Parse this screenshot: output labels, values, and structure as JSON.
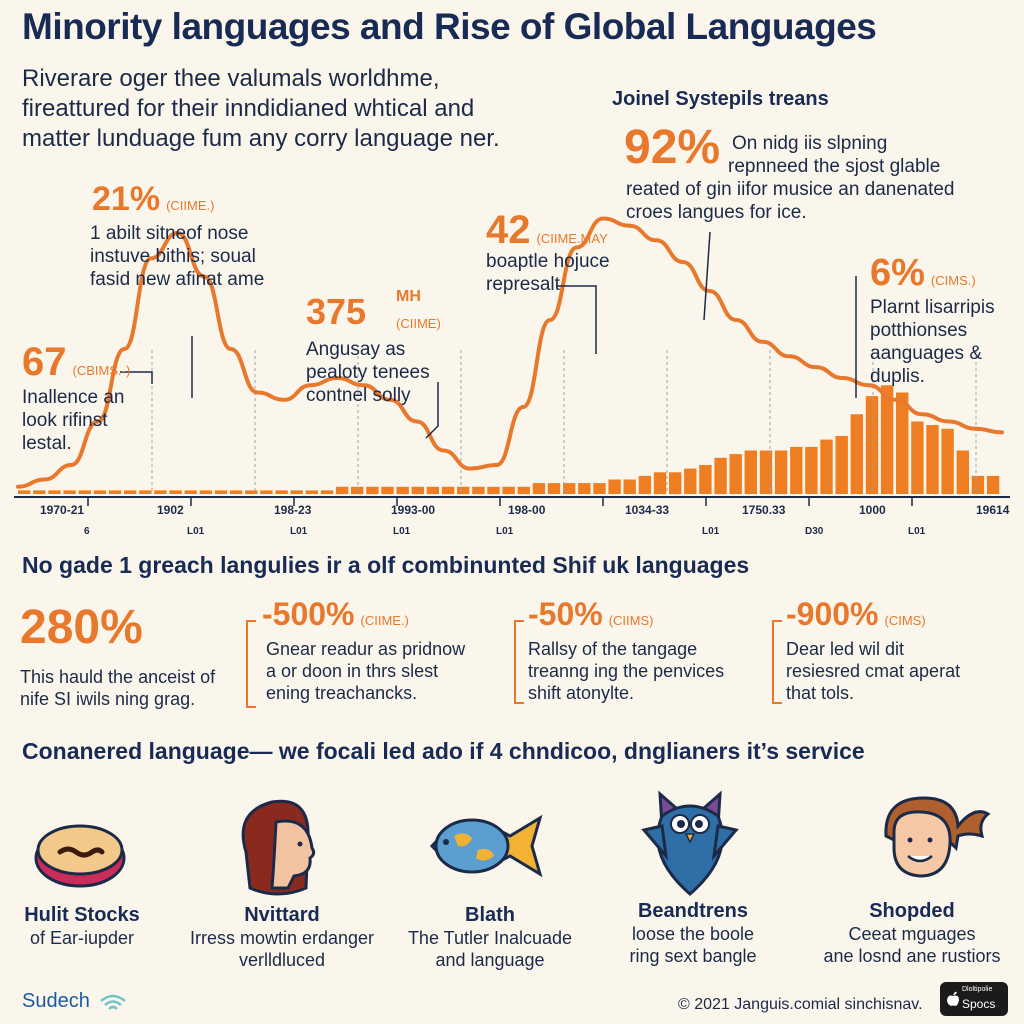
{
  "header": {
    "title": "Minority languages and Rise of Global Languages",
    "intro": [
      "Riverare oger thee valumals worldhme,",
      "fireattured for their inndidianed whtical and",
      "matter lunduage fum any corry language ner."
    ],
    "side_heading": "Joinel Systepils treans"
  },
  "callouts": [
    {
      "value": "67",
      "unit": "(CBIMS.-)",
      "lines": [
        "Inallence an",
        "look rifinst",
        "lestal."
      ]
    },
    {
      "value": "21%",
      "unit": "(CIIME.)",
      "lines": [
        "1 abilt sitneof nose",
        "instuve bithis; soual",
        "fasid new afinat ame"
      ]
    },
    {
      "value": "375",
      "unit": "MH",
      "unit2": "(CIIME)",
      "lines": [
        "Angusay as",
        "pealoty tenees",
        "contnel solly"
      ]
    },
    {
      "value": "42",
      "unit": "(CIIME.MAY",
      "lines": [
        "boaptle hojuce",
        "represalt"
      ]
    },
    {
      "value": "92%",
      "unit": "",
      "lines": [
        "On nidg iis slpning",
        "repnneed the sjost glable",
        "reated of gin iifor musice an danenated",
        "croes langues for ice."
      ]
    },
    {
      "value": "6%",
      "unit": "(CIMS.)",
      "lines": [
        "Plarnt lisarripis",
        "potthionses",
        "aanguages &",
        "duplis."
      ]
    }
  ],
  "chart_data": {
    "type": "area",
    "x": [
      "1970-21",
      "1902",
      "198-23",
      "1993-00",
      "198-00",
      "1034-33",
      "1750.33",
      "1000",
      "19614"
    ],
    "x_sub": [
      "6",
      "L01",
      "L01",
      "L01",
      "L01",
      "",
      "L01",
      "D30",
      "L01"
    ],
    "line_values": [
      2,
      4,
      8,
      20,
      40,
      65,
      72,
      60,
      40,
      28,
      26,
      30,
      32,
      30,
      26,
      20,
      12,
      7,
      8,
      24,
      48,
      68,
      76,
      74,
      70,
      64,
      56,
      48,
      42,
      38,
      35,
      32,
      30,
      26,
      22,
      20,
      18,
      17
    ],
    "bar_values": [
      1,
      1,
      1,
      1,
      1,
      1,
      1,
      1,
      1,
      1,
      1,
      1,
      1,
      1,
      1,
      1,
      1,
      1,
      1,
      1,
      1,
      2,
      2,
      2,
      2,
      2,
      2,
      2,
      2,
      2,
      2,
      2,
      2,
      2,
      3,
      3,
      3,
      3,
      3,
      4,
      4,
      5,
      6,
      6,
      7,
      8,
      10,
      11,
      12,
      12,
      12,
      13,
      13,
      15,
      16,
      22,
      27,
      30,
      28,
      20,
      19,
      18,
      12,
      5,
      5
    ],
    "colors": {
      "line": "#e8782c",
      "bar": "#ef7e22",
      "axis": "#1b2a48"
    }
  },
  "stats": {
    "heading": "No gade 1 greach langulies ir a olf combinunted Shif uk languages",
    "items": [
      {
        "value": "280%",
        "unit": "",
        "lines": [
          "This hauld the anceist of",
          "nife SI iwils ning grag."
        ]
      },
      {
        "value": "-500%",
        "unit": "(CIIME.)",
        "lines": [
          "Gnear readur as pridnow",
          "a or doon in thrs slest",
          "ening treachancks."
        ]
      },
      {
        "value": "-50%",
        "unit": "(CIIMS)",
        "lines": [
          "Rallsy of the tangage",
          "treanng ing the penvices",
          "shift atonylte."
        ]
      },
      {
        "value": "-900%",
        "unit": "(CIMS)",
        "lines": [
          "Dear led wil dit",
          "resiesred cmat aperat",
          "that tols."
        ]
      }
    ]
  },
  "cards": {
    "heading": "Conanered language— we focali led ado if 4 chndicoo, dnglianers it’s service",
    "items": [
      {
        "icon": "donut-icon",
        "title": "Hulit Stocks",
        "lines": [
          "of Ear-iupder"
        ]
      },
      {
        "icon": "woman-profile-icon",
        "title": "Nvittard",
        "lines": [
          "Irress mowtin erdanger",
          "verlldluced"
        ]
      },
      {
        "icon": "globe-fish-icon",
        "title": "Blath",
        "lines": [
          "The Tutler Inalcuade",
          "and language"
        ]
      },
      {
        "icon": "owl-mascot-icon",
        "title": "Beandtrens",
        "lines": [
          "loose the boole",
          "ring sext bangle"
        ]
      },
      {
        "icon": "smiling-woman-icon",
        "title": "Shopded",
        "lines": [
          "Ceeat mguages",
          "ane losnd ane rustiors"
        ]
      }
    ]
  },
  "footer": {
    "brand": "Sudech",
    "copyright": "© 2021 Janguis.comial sinchisnav.",
    "badge_top": "Dloltipolie",
    "badge_bottom": "Spocs"
  }
}
